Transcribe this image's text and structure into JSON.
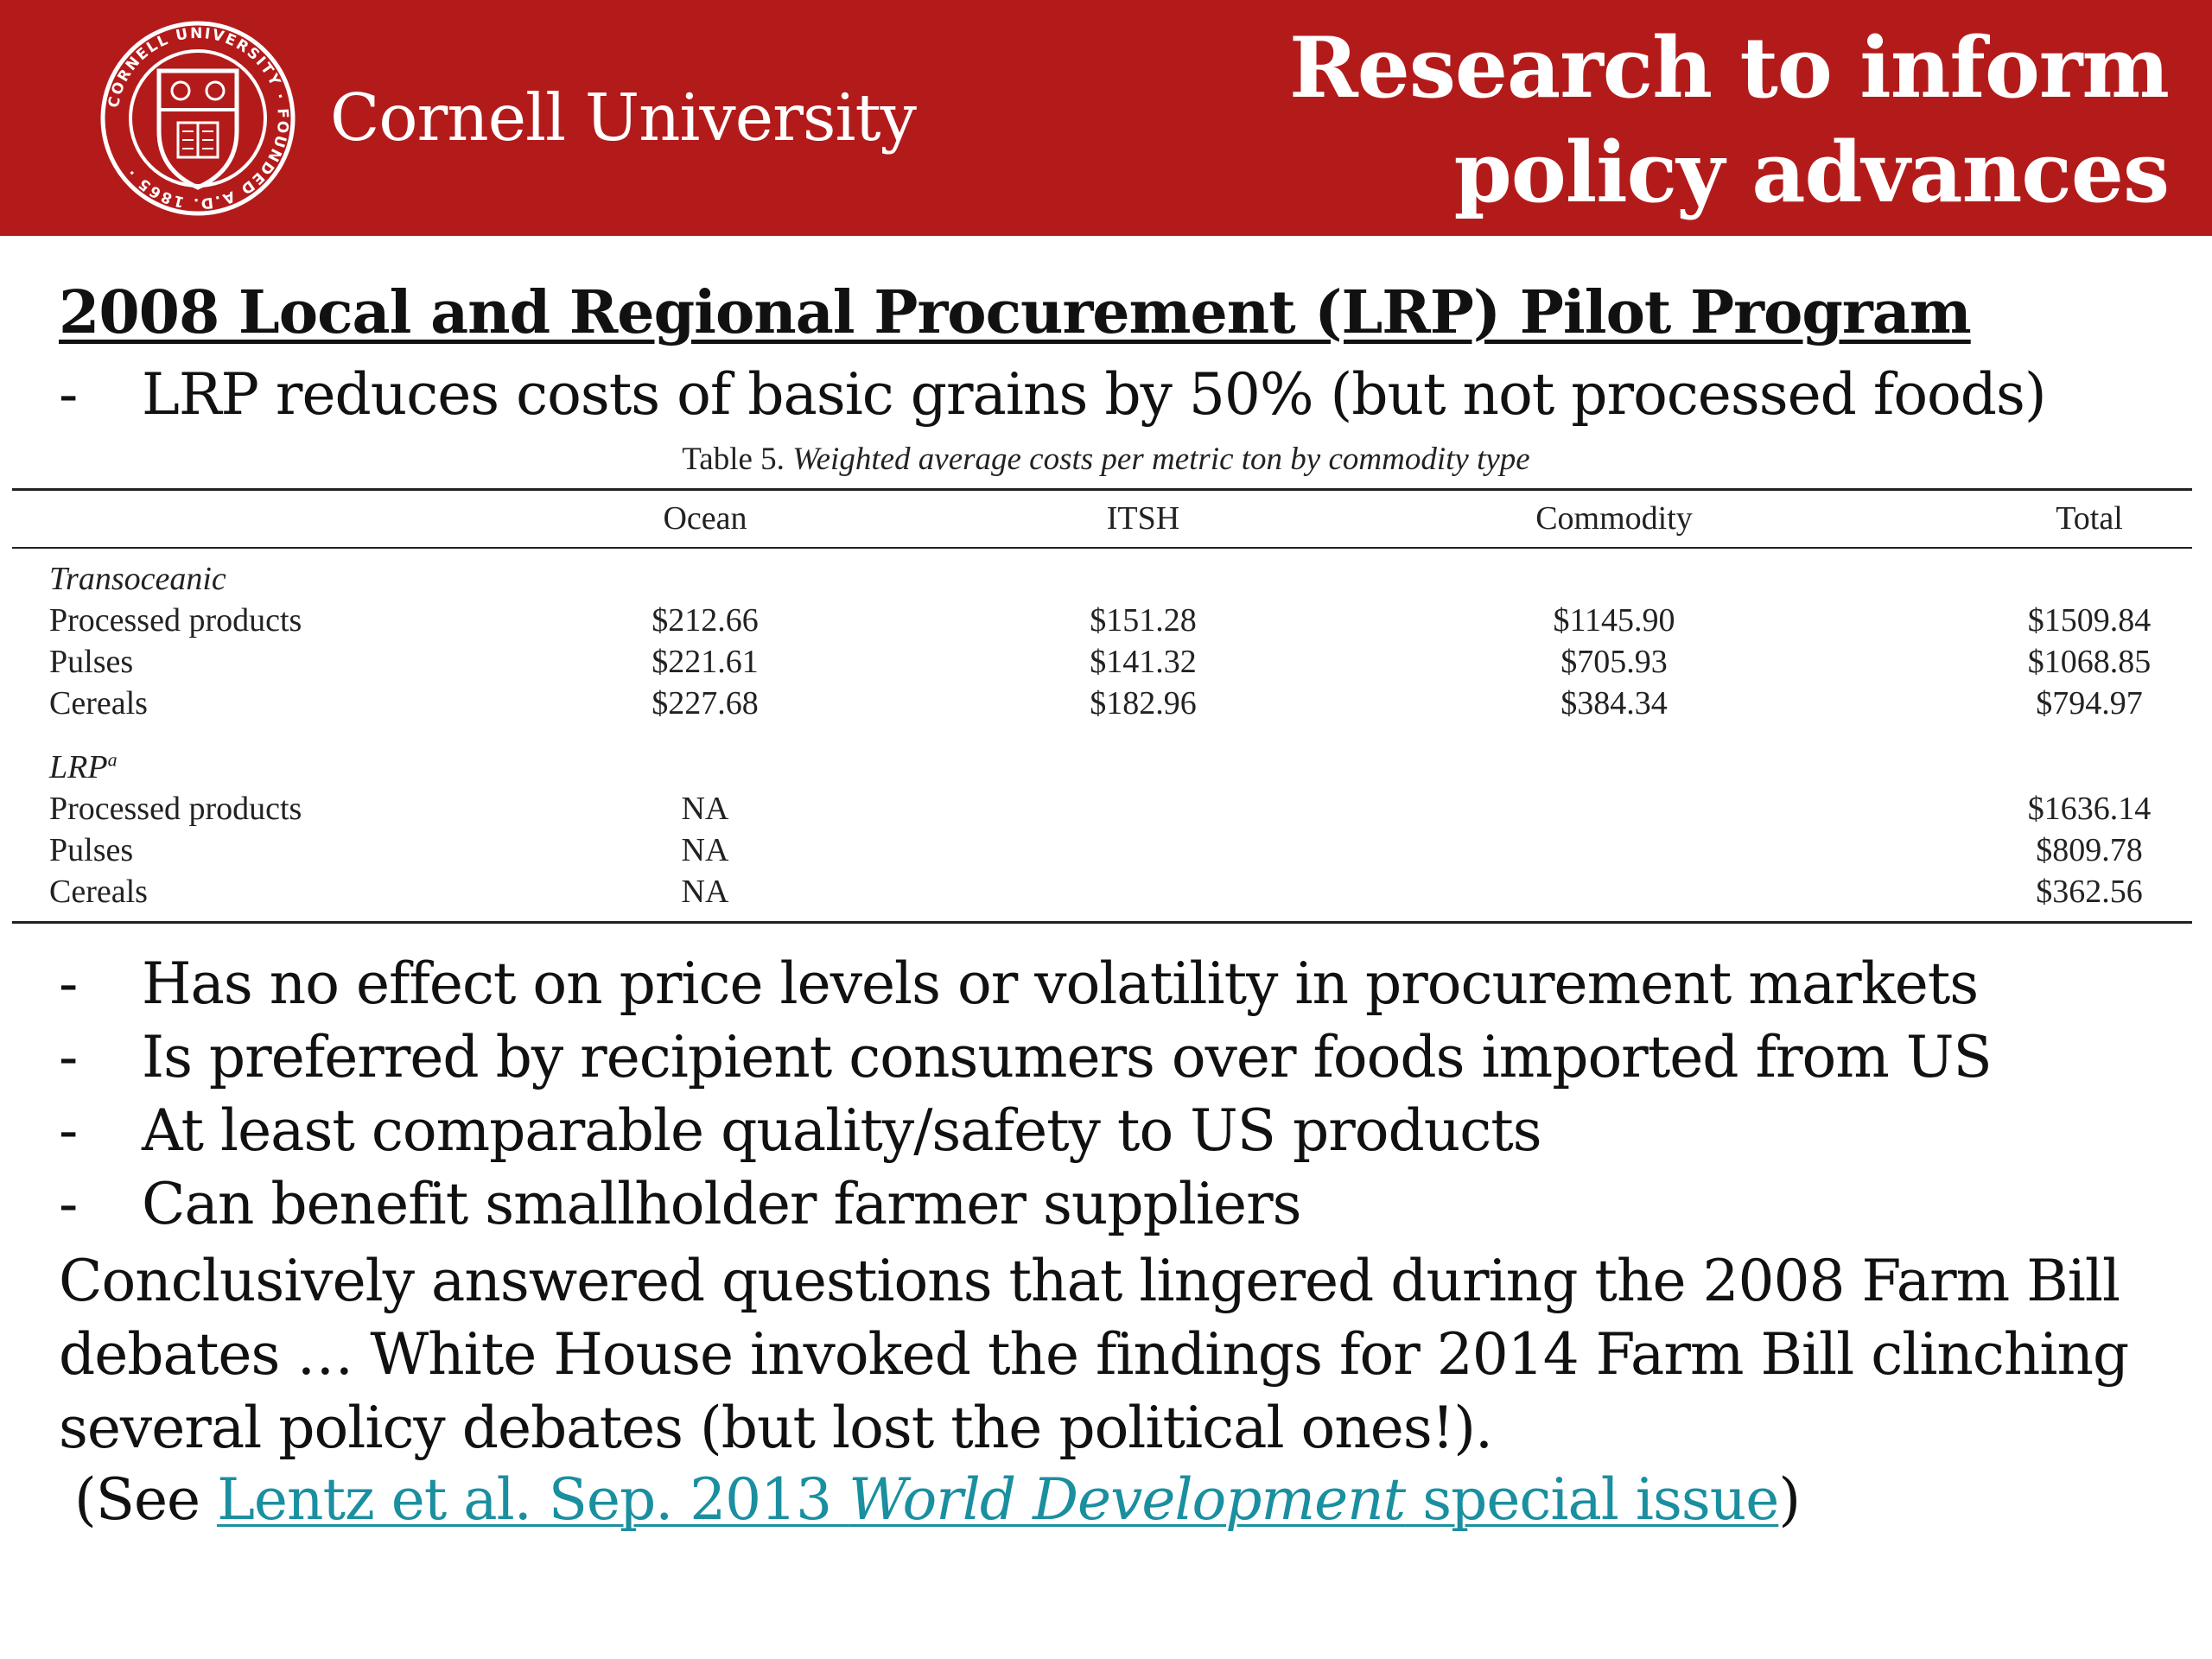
{
  "header": {
    "brand": "Cornell University",
    "seal_text": "CORNELL UNIVERSITY · FOUNDED A.D. 1865",
    "title_line1": "Research to inform",
    "title_line2": "policy advances",
    "colors": {
      "banner": "#b31b1b",
      "text": "#ffffff"
    }
  },
  "main": {
    "subtitle": "2008 Local and Regional Procurement (LRP) Pilot Program",
    "bullet_top": "LRP reduces costs of basic grains by 50% (but not processed foods)",
    "dash": "-"
  },
  "table": {
    "caption_prefix": "Table 5.",
    "caption_text": "Weighted average costs per metric ton by commodity type",
    "columns": [
      "Ocean",
      "ITSH",
      "Commodity",
      "Total"
    ],
    "sections": [
      {
        "name": "Transoceanic",
        "sup": "",
        "rows": [
          {
            "label": "Processed products",
            "ocean": "$212.66",
            "itsh": "$151.28",
            "commodity": "$1145.90",
            "total": "$1509.84"
          },
          {
            "label": "Pulses",
            "ocean": "$221.61",
            "itsh": "$141.32",
            "commodity": "$705.93",
            "total": "$1068.85"
          },
          {
            "label": "Cereals",
            "ocean": "$227.68",
            "itsh": "$182.96",
            "commodity": "$384.34",
            "total": "$794.97"
          }
        ]
      },
      {
        "name": "LRP",
        "sup": "a",
        "rows": [
          {
            "label": "Processed products",
            "ocean": "NA",
            "itsh": "",
            "commodity": "",
            "total": "$1636.14"
          },
          {
            "label": "Pulses",
            "ocean": "NA",
            "itsh": "",
            "commodity": "",
            "total": "$809.78"
          },
          {
            "label": "Cereals",
            "ocean": "NA",
            "itsh": "",
            "commodity": "",
            "total": "$362.56"
          }
        ]
      }
    ]
  },
  "bullets": [
    "Has no effect on price levels or volatility in procurement markets",
    "Is preferred by recipient consumers over foods imported from US",
    "At least comparable quality/safety to US products",
    "Can benefit smallholder farmer suppliers"
  ],
  "conclusion": {
    "line1": "Conclusively answered questions that lingered during the 2008 Farm Bill",
    "line2": "debates … White House invoked the findings for 2014 Farm Bill clinching",
    "line3": "several policy debates (but lost the political ones!)."
  },
  "reference": {
    "open": "(See ",
    "link_part1": "Lentz et al. Sep. 2013 ",
    "link_italic": "World Development",
    "link_part2": " special issue",
    "close": ")",
    "link_color": "#1a8fa0"
  }
}
